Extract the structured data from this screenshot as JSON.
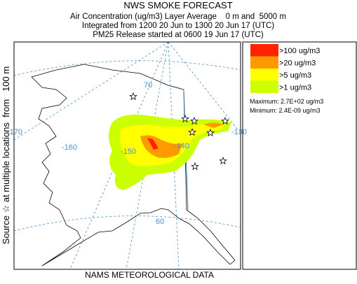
{
  "header": {
    "title": "NWS SMOKE FORECAST",
    "lines": [
      "Air Concentration (ug/m3) Layer Average    0 m and  5000 m",
      "Integrated from 1200 20 Jun to 1300 20 Jun 17 (UTC)",
      "PM25 Release started at 0600 19 Jun 17 (UTC)"
    ]
  },
  "side_label": "Source ☆ at multiple locations  from   100 m",
  "footer": "NAMS METEOROLOGICAL DATA",
  "legend": {
    "items": [
      {
        "label": ">100 ug/m3",
        "color": "#ff2200"
      },
      {
        "label": ">20 ug/m3",
        "color": "#ff9900"
      },
      {
        "label": ">5 ug/m3",
        "color": "#ffff00"
      },
      {
        "label": ">1 ug/m3",
        "color": "#ccff00"
      }
    ],
    "maximum": "Maximum: 2.7E+02 ug/m3",
    "minimum": "Minimum: 2.4E-09 ug/m3"
  },
  "map": {
    "graticule_labels": [
      "70",
      "-170",
      "-160",
      "-150",
      "-140",
      "-130",
      "60"
    ]
  }
}
